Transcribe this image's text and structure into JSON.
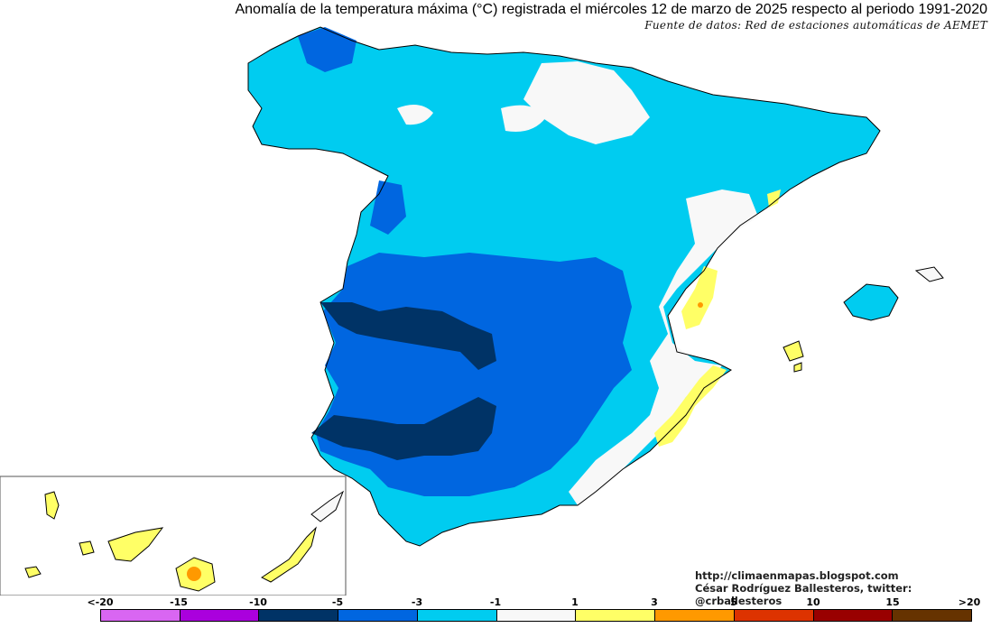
{
  "title": "Anomalía de la temperatura máxima (°C) registrada el miércoles 12 de marzo de 2025 respecto al periodo 1991-2020",
  "source": "Fuente de datos: Red de estaciones automáticas de AEMET",
  "credits": {
    "blog": "http://climaenmapas.blogspot.com",
    "author": "César Rodríguez Ballesteros, twitter: @crballesteros"
  },
  "legend": {
    "labels": [
      "<-20",
      "-15",
      "-10",
      "-5",
      "-3",
      "-1",
      "1",
      "3",
      "5",
      "10",
      "15",
      ">20"
    ],
    "colors": [
      "#d966f2",
      "#aa00dd",
      "#003366",
      "#0066e0",
      "#00ccf0",
      "#f8f8f8",
      "#ffff66",
      "#ff9900",
      "#dd3300",
      "#990000",
      "#663300"
    ]
  },
  "map_colors": {
    "very_cold": "#003366",
    "cold": "#0066e0",
    "cool": "#00ccf0",
    "neutral": "#f8f8f8",
    "warm": "#ffff66",
    "warmer": "#ff9900"
  }
}
